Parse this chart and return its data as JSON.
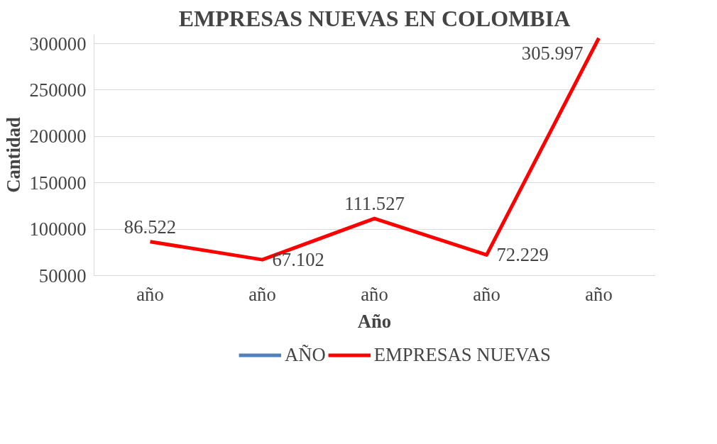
{
  "chart_data": {
    "type": "line",
    "title": "EMPRESAS NUEVAS EN COLOMBIA",
    "xlabel": "Año",
    "ylabel": "Cantidad",
    "categories": [
      "año",
      "año",
      "año",
      "año",
      "año"
    ],
    "series": [
      {
        "name": "AÑO",
        "color": "#4f81bd",
        "values": [
          null,
          null,
          null,
          null,
          null
        ]
      },
      {
        "name": "EMPRESAS NUEVAS",
        "color": "#ff0000",
        "values": [
          86522,
          67102,
          111527,
          72229,
          305997
        ],
        "value_labels": [
          "86.522",
          "67.102",
          "111.527",
          "72.229",
          "305.997"
        ]
      }
    ],
    "ylim": [
      50000,
      310000
    ],
    "yticks": [
      50000,
      100000,
      150000,
      200000,
      250000,
      300000
    ],
    "grid": "y",
    "legend": "bottom",
    "marker": "none",
    "line_style": "solid"
  }
}
